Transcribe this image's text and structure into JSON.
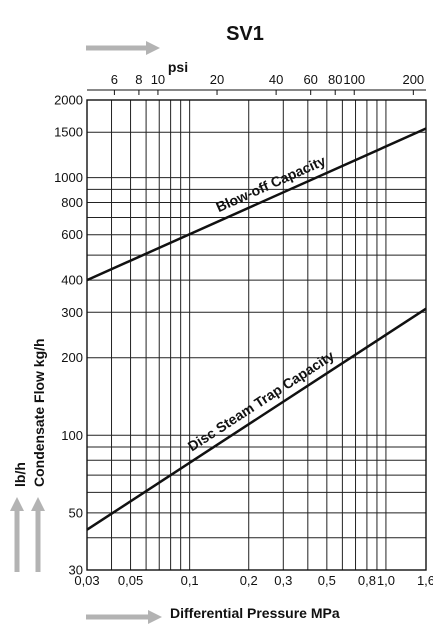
{
  "chart_data": {
    "type": "line",
    "title": "SV1",
    "xlabel": "Differential Pressure MPa",
    "ylabel": "Condensate Flow kg/h",
    "ylabel_alt_unit": "lb/h",
    "top_axis_unit": "psi",
    "x_scale": "log",
    "y_scale": "log",
    "xlim": [
      0.03,
      1.6
    ],
    "ylim": [
      30,
      2000
    ],
    "x_ticks": [
      0.03,
      0.05,
      0.1,
      0.2,
      0.3,
      0.5,
      0.8,
      1.0,
      1.6
    ],
    "x_tick_labels": [
      "0,03",
      "0,05",
      "0,1",
      "0,2",
      "0,3",
      "0,5",
      "0,8",
      "1,0",
      "1,6"
    ],
    "x_grid": [
      0.03,
      0.04,
      0.05,
      0.06,
      0.07,
      0.08,
      0.09,
      0.1,
      0.2,
      0.3,
      0.4,
      0.5,
      0.6,
      0.7,
      0.8,
      0.9,
      1.0,
      1.6
    ],
    "y_ticks": [
      30,
      50,
      100,
      200,
      300,
      400,
      600,
      800,
      1000,
      1500,
      2000
    ],
    "y_grid": [
      30,
      40,
      50,
      60,
      70,
      80,
      90,
      100,
      200,
      300,
      400,
      500,
      600,
      700,
      800,
      900,
      1000,
      1500,
      2000
    ],
    "psi_ticks": [
      6,
      8,
      10,
      20,
      40,
      60,
      80,
      100,
      200
    ],
    "grid": true,
    "series": [
      {
        "name": "Blow-off Capacity",
        "x": [
          0.03,
          1.6
        ],
        "y": [
          400,
          1550
        ]
      },
      {
        "name": "Disc Steam Trap Capacity",
        "x": [
          0.03,
          1.6
        ],
        "y": [
          43,
          310
        ]
      }
    ]
  }
}
